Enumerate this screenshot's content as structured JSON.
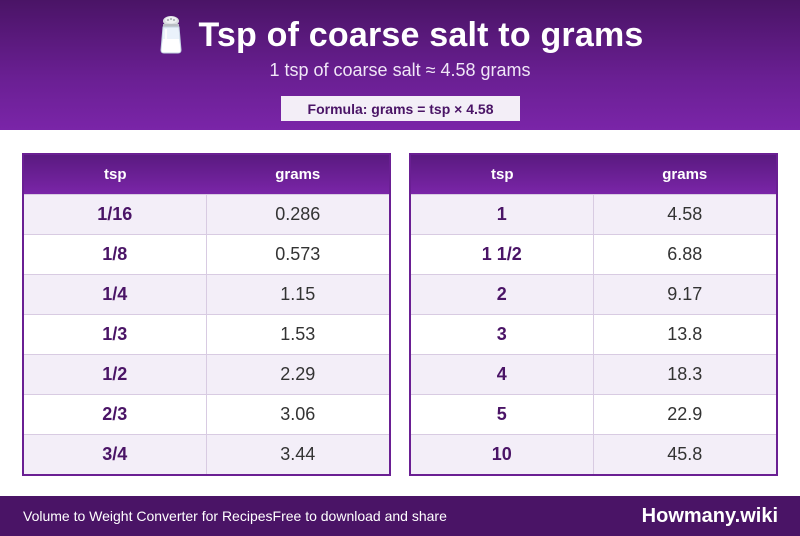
{
  "header": {
    "title": "Tsp of coarse salt to grams",
    "icon": "salt-shaker-icon",
    "subtitle": "1 tsp of coarse salt ≈ 4.58 grams",
    "formula": "Formula: grams = tsp × 4.58"
  },
  "tables": [
    {
      "columns": [
        "tsp",
        "grams"
      ],
      "rows": [
        {
          "tsp": "1/16",
          "grams": "0.286"
        },
        {
          "tsp": "1/8",
          "grams": "0.573"
        },
        {
          "tsp": "1/4",
          "grams": "1.15"
        },
        {
          "tsp": "1/3",
          "grams": "1.53"
        },
        {
          "tsp": "1/2",
          "grams": "2.29"
        },
        {
          "tsp": "2/3",
          "grams": "3.06"
        },
        {
          "tsp": "3/4",
          "grams": "3.44"
        }
      ]
    },
    {
      "columns": [
        "tsp",
        "grams"
      ],
      "rows": [
        {
          "tsp": "1",
          "grams": "4.58"
        },
        {
          "tsp": "1 1/2",
          "grams": "6.88"
        },
        {
          "tsp": "2",
          "grams": "9.17"
        },
        {
          "tsp": "3",
          "grams": "13.8"
        },
        {
          "tsp": "4",
          "grams": "18.3"
        },
        {
          "tsp": "5",
          "grams": "22.9"
        },
        {
          "tsp": "10",
          "grams": "45.8"
        }
      ]
    }
  ],
  "footer": {
    "left_text": "Volume to Weight Converter for Recipes",
    "middle_text": "Free to download and share",
    "brand": "Howmany.wiki"
  },
  "colors": {
    "primary": "#6a1f93",
    "dark": "#4a1466",
    "row_alt": "#f3eef8"
  }
}
